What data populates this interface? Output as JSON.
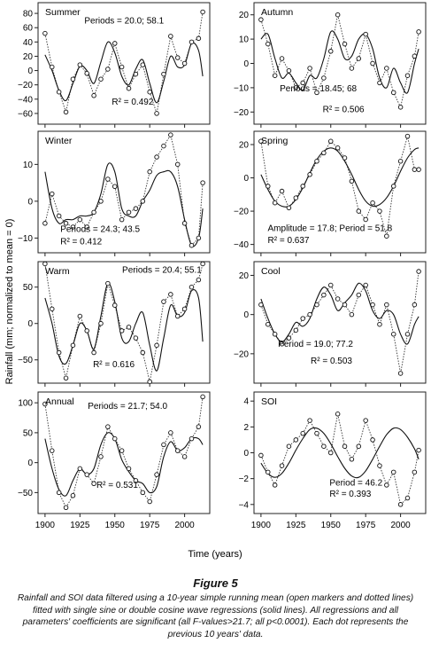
{
  "figure": {
    "ylabel": "Rainfall (mm; normalized to mean = 0)",
    "xlabel": "Time (years)",
    "title": "Figure 5",
    "caption": "Rainfall and SOI data filtered using a 10-year simple running mean (open markers and dotted lines) fitted with single sine or double cosine wave regressions (solid lines). All regressions and all parameters' coefficients are significant (all F-values>21.7; all p<0.0001). Each dot represents the previous 10 years' data.",
    "x_ticks": [
      "1900",
      "1925",
      "1950",
      "1975",
      "2000"
    ]
  },
  "chart_data": [
    {
      "type": "scatter",
      "name": "Summer",
      "col": 0,
      "row": 0,
      "ylim": [
        -75,
        95
      ],
      "yticks": [
        -60,
        -40,
        -20,
        0,
        20,
        40,
        60,
        80
      ],
      "annotations": [
        "Periods = 20.0; 58.1",
        "R² = 0.492"
      ],
      "periods": [
        20.0,
        58.1
      ],
      "x": [
        1900,
        1905,
        1910,
        1915,
        1920,
        1925,
        1930,
        1935,
        1940,
        1945,
        1950,
        1955,
        1960,
        1965,
        1970,
        1975,
        1980,
        1985,
        1990,
        1995,
        2000,
        2005,
        2010,
        2013
      ],
      "observed": [
        52,
        5,
        -30,
        -58,
        -12,
        8,
        -4,
        -35,
        -12,
        2,
        38,
        5,
        -25,
        -5,
        8,
        -30,
        -60,
        -5,
        48,
        18,
        10,
        40,
        45,
        82
      ],
      "fitted": [
        22,
        0,
        -28,
        -42,
        -18,
        6,
        0,
        -18,
        12,
        40,
        25,
        -8,
        -20,
        2,
        15,
        -18,
        -45,
        -15,
        20,
        5,
        8,
        38,
        28,
        -8
      ]
    },
    {
      "type": "scatter",
      "name": "Autumn",
      "col": 1,
      "row": 0,
      "ylim": [
        -25,
        25
      ],
      "yticks": [
        -20,
        -10,
        0,
        10,
        20
      ],
      "annotations": [
        "Periods = 18.45; 68",
        "R² = 0.506"
      ],
      "periods": [
        18.45,
        68
      ],
      "x": [
        1900,
        1905,
        1910,
        1915,
        1920,
        1925,
        1930,
        1935,
        1940,
        1945,
        1950,
        1955,
        1960,
        1965,
        1970,
        1975,
        1980,
        1985,
        1990,
        1995,
        2000,
        2005,
        2010,
        2013
      ],
      "observed": [
        18,
        8,
        -5,
        2,
        -3,
        -10,
        -8,
        -2,
        -12,
        -6,
        5,
        20,
        8,
        -2,
        2,
        12,
        0,
        -8,
        -2,
        -12,
        -18,
        -5,
        3,
        13
      ],
      "fitted": [
        10,
        12,
        2,
        -6,
        -4,
        -8,
        -11,
        -5,
        -6,
        2,
        13,
        10,
        2,
        3,
        10,
        12,
        6,
        -6,
        -10,
        -2,
        -8,
        -12,
        0,
        6
      ]
    },
    {
      "type": "scatter",
      "name": "Winter",
      "col": 0,
      "row": 1,
      "ylim": [
        -14,
        19
      ],
      "yticks": [
        -10,
        0,
        10
      ],
      "annotations": [
        "Periods = 24.3; 43.5",
        "R² = 0.412"
      ],
      "periods": [
        24.3,
        43.5
      ],
      "x": [
        1900,
        1905,
        1910,
        1915,
        1920,
        1925,
        1930,
        1935,
        1940,
        1945,
        1950,
        1955,
        1960,
        1965,
        1970,
        1975,
        1980,
        1985,
        1990,
        1995,
        2000,
        2005,
        2010,
        2013
      ],
      "observed": [
        -6,
        2,
        -4,
        -6,
        -7,
        -5,
        -7,
        -3,
        0,
        6,
        4,
        -5,
        -3,
        -2,
        0,
        8,
        12,
        15,
        18,
        10,
        -6,
        -12,
        -10,
        5
      ],
      "fitted": [
        8,
        -2,
        -6,
        -5,
        -5,
        -4,
        -4,
        -3,
        2,
        10,
        8,
        -2,
        -4,
        -4,
        0,
        3,
        7,
        8,
        8,
        4,
        -5,
        -12,
        -10,
        -2
      ]
    },
    {
      "type": "scatter",
      "name": "Spring",
      "col": 1,
      "row": 1,
      "ylim": [
        -45,
        28
      ],
      "yticks": [
        -40,
        -20,
        0,
        20
      ],
      "annotations": [
        "Amplitude = 17.8; Period = 51.8",
        "R² = 0.637"
      ],
      "periods": [
        51.8
      ],
      "x": [
        1900,
        1905,
        1910,
        1915,
        1920,
        1925,
        1930,
        1935,
        1940,
        1945,
        1950,
        1955,
        1960,
        1965,
        1970,
        1975,
        1980,
        1985,
        1990,
        1995,
        2000,
        2005,
        2010,
        2013
      ],
      "observed": [
        22,
        -5,
        -15,
        -8,
        -18,
        -12,
        -5,
        2,
        10,
        15,
        22,
        18,
        12,
        -2,
        -20,
        -25,
        -15,
        -20,
        -35,
        -5,
        10,
        25,
        5,
        5
      ],
      "fitted": [
        2,
        -7,
        -14,
        -17,
        -17,
        -13,
        -6,
        3,
        11,
        16,
        18,
        16,
        10,
        2,
        -7,
        -14,
        -17,
        -16,
        -12,
        -5,
        4,
        12,
        17,
        18
      ]
    },
    {
      "type": "scatter",
      "name": "Warm",
      "col": 0,
      "row": 2,
      "ylim": [
        -82,
        85
      ],
      "yticks": [
        -50,
        0,
        50
      ],
      "annotations": [
        "Periods = 20.4; 55.1",
        "R² = 0.616"
      ],
      "periods": [
        20.4,
        55.1
      ],
      "x": [
        1900,
        1905,
        1910,
        1915,
        1920,
        1925,
        1930,
        1935,
        1940,
        1945,
        1950,
        1955,
        1960,
        1965,
        1970,
        1975,
        1980,
        1985,
        1990,
        1995,
        2000,
        2005,
        2010,
        2013
      ],
      "observed": [
        82,
        20,
        -40,
        -75,
        -30,
        10,
        -10,
        -40,
        0,
        55,
        25,
        -10,
        -5,
        -20,
        -40,
        -80,
        -30,
        30,
        40,
        10,
        20,
        50,
        60,
        82
      ],
      "fitted": [
        35,
        0,
        -45,
        -55,
        -30,
        0,
        -10,
        -35,
        10,
        55,
        30,
        -20,
        -25,
        0,
        15,
        -30,
        -65,
        -20,
        25,
        10,
        15,
        45,
        35,
        -25
      ]
    },
    {
      "type": "scatter",
      "name": "Cool",
      "col": 1,
      "row": 2,
      "ylim": [
        -35,
        27
      ],
      "yticks": [
        -20,
        0,
        20
      ],
      "annotations": [
        "Period = 19.0; 77.2",
        "R² = 0.503"
      ],
      "periods": [
        19.0,
        77.2
      ],
      "x": [
        1900,
        1905,
        1910,
        1915,
        1920,
        1925,
        1930,
        1935,
        1940,
        1945,
        1950,
        1955,
        1960,
        1965,
        1970,
        1975,
        1980,
        1985,
        1990,
        1995,
        2000,
        2005,
        2010,
        2013
      ],
      "observed": [
        5,
        -5,
        -10,
        -15,
        -12,
        -8,
        -2,
        0,
        5,
        10,
        15,
        8,
        5,
        0,
        10,
        15,
        5,
        -5,
        5,
        -10,
        -30,
        -10,
        5,
        22
      ],
      "fitted": [
        8,
        -2,
        -10,
        -14,
        -10,
        -4,
        -6,
        -2,
        8,
        14,
        10,
        2,
        6,
        10,
        16,
        12,
        2,
        -2,
        2,
        0,
        -10,
        -15,
        -5,
        -1
      ]
    },
    {
      "type": "scatter",
      "name": "Annual",
      "col": 0,
      "row": 3,
      "ylim": [
        -85,
        118
      ],
      "yticks": [
        -50,
        0,
        50,
        100
      ],
      "annotations": [
        "Periods = 21.7; 54.0",
        "R² = 0.531"
      ],
      "periods": [
        21.7,
        54.0
      ],
      "x": [
        1900,
        1905,
        1910,
        1915,
        1920,
        1925,
        1930,
        1935,
        1940,
        1945,
        1950,
        1955,
        1960,
        1965,
        1970,
        1975,
        1980,
        1985,
        1990,
        1995,
        2000,
        2005,
        2010,
        2013
      ],
      "observed": [
        98,
        20,
        -50,
        -75,
        -55,
        -10,
        -20,
        -35,
        10,
        60,
        40,
        20,
        -10,
        -30,
        -50,
        -65,
        -20,
        30,
        50,
        20,
        10,
        40,
        60,
        110
      ],
      "fitted": [
        40,
        -10,
        -45,
        -55,
        -30,
        -10,
        -20,
        -10,
        30,
        50,
        40,
        5,
        -15,
        -30,
        -35,
        -50,
        -40,
        10,
        35,
        20,
        25,
        40,
        40,
        30
      ]
    },
    {
      "type": "scatter",
      "name": "SOI",
      "col": 1,
      "row": 3,
      "ylim": [
        -4.7,
        4.7
      ],
      "yticks": [
        -4,
        -2,
        0,
        2,
        4
      ],
      "annotations": [
        "Period = 46.2",
        "R² = 0.393"
      ],
      "periods": [
        46.2
      ],
      "x": [
        1900,
        1905,
        1910,
        1915,
        1920,
        1925,
        1930,
        1935,
        1940,
        1945,
        1950,
        1955,
        1960,
        1965,
        1970,
        1975,
        1980,
        1985,
        1990,
        1995,
        2000,
        2005,
        2010,
        2013
      ],
      "observed": [
        -0.2,
        -1.5,
        -2.5,
        -1.0,
        0.5,
        1.0,
        1.5,
        2.5,
        1.5,
        0.5,
        0.0,
        3.0,
        0.5,
        -0.5,
        0.5,
        2.5,
        1.0,
        -1.0,
        -2.5,
        -1.5,
        -4.0,
        -3.5,
        -1.5,
        0.2
      ],
      "fitted": [
        -0.8,
        -1.6,
        -1.9,
        -1.6,
        -0.8,
        0.2,
        1.1,
        1.8,
        1.9,
        1.5,
        0.7,
        -0.3,
        -1.2,
        -1.8,
        -1.9,
        -1.4,
        -0.5,
        0.5,
        1.4,
        1.9,
        1.8,
        1.2,
        0.3,
        -0.5
      ]
    }
  ]
}
